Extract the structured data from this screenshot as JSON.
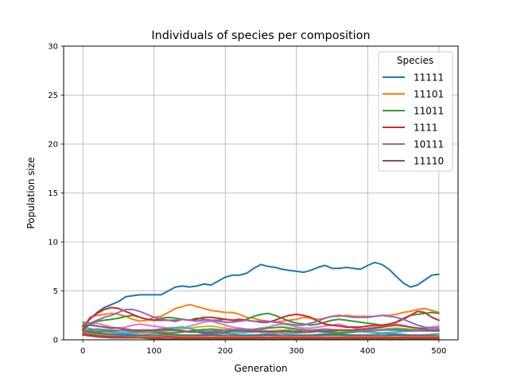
{
  "chart_data": {
    "type": "line",
    "title": "Individuals of species per composition",
    "xlabel": "Generation",
    "ylabel": "Population size",
    "xlim": [
      -27,
      527
    ],
    "ylim": [
      0,
      30
    ],
    "xticks": [
      0,
      100,
      200,
      300,
      400,
      500
    ],
    "yticks": [
      0,
      5,
      10,
      15,
      20,
      25,
      30
    ],
    "grid": true,
    "legend": {
      "title": "Species",
      "placement": "top-right"
    },
    "series": [
      {
        "name": "11111",
        "color": "#1f77b4",
        "x": [
          0,
          10,
          20,
          30,
          40,
          50,
          60,
          70,
          80,
          90,
          100,
          110,
          120,
          130,
          140,
          150,
          160,
          170,
          180,
          190,
          200,
          210,
          220,
          230,
          240,
          250,
          260,
          270,
          280,
          290,
          300,
          310,
          320,
          330,
          340,
          350,
          360,
          370,
          380,
          390,
          400,
          410,
          420,
          430,
          440,
          450,
          460,
          470,
          480,
          490,
          500
        ],
        "values": [
          1.5,
          2.1,
          2.8,
          3.3,
          3.6,
          3.9,
          4.4,
          4.5,
          4.6,
          4.6,
          4.6,
          4.6,
          5.0,
          5.4,
          5.5,
          5.4,
          5.5,
          5.7,
          5.6,
          6.0,
          6.4,
          6.6,
          6.6,
          6.8,
          7.3,
          7.7,
          7.5,
          7.4,
          7.2,
          7.1,
          7.0,
          6.9,
          7.1,
          7.4,
          7.6,
          7.3,
          7.3,
          7.4,
          7.3,
          7.2,
          7.6,
          7.9,
          7.7,
          7.2,
          6.5,
          5.8,
          5.4,
          5.6,
          6.1,
          6.6,
          6.7
        ]
      },
      {
        "name": "11101",
        "color": "#ff7f0e",
        "x": [
          0,
          10,
          20,
          30,
          40,
          50,
          60,
          70,
          80,
          90,
          100,
          110,
          120,
          130,
          140,
          150,
          160,
          170,
          180,
          190,
          200,
          210,
          220,
          230,
          240,
          250,
          260,
          270,
          280,
          290,
          300,
          310,
          320,
          330,
          340,
          350,
          360,
          370,
          380,
          390,
          400,
          410,
          420,
          430,
          440,
          450,
          460,
          470,
          480,
          490,
          500
        ],
        "values": [
          1.2,
          2.3,
          2.5,
          2.6,
          2.7,
          2.6,
          2.4,
          2.1,
          1.9,
          2.0,
          2.3,
          2.4,
          2.8,
          3.2,
          3.4,
          3.6,
          3.4,
          3.2,
          3.0,
          2.9,
          2.8,
          2.8,
          2.6,
          2.3,
          2.2,
          2.0,
          1.9,
          1.8,
          1.9,
          2.0,
          2.1,
          2.3,
          2.2,
          2.1,
          2.2,
          2.4,
          2.4,
          2.5,
          2.4,
          2.4,
          2.4,
          2.4,
          2.5,
          2.5,
          2.6,
          2.8,
          2.9,
          3.1,
          3.2,
          3.0,
          2.8
        ]
      },
      {
        "name": "11011",
        "color": "#2ca02c",
        "x": [
          0,
          10,
          20,
          30,
          40,
          50,
          60,
          70,
          80,
          90,
          100,
          110,
          120,
          130,
          140,
          150,
          160,
          170,
          180,
          190,
          200,
          210,
          220,
          230,
          240,
          250,
          260,
          270,
          280,
          290,
          300,
          310,
          320,
          330,
          340,
          350,
          360,
          370,
          380,
          390,
          400,
          410,
          420,
          430,
          440,
          450,
          460,
          470,
          480,
          490,
          500
        ],
        "values": [
          1.0,
          1.6,
          1.9,
          2.0,
          2.1,
          2.2,
          2.4,
          2.5,
          2.3,
          2.1,
          2.0,
          2.2,
          2.3,
          2.2,
          2.1,
          2.0,
          2.2,
          2.1,
          2.0,
          2.0,
          2.1,
          2.0,
          1.9,
          2.1,
          2.4,
          2.6,
          2.7,
          2.5,
          2.2,
          1.9,
          1.7,
          1.6,
          1.5,
          1.6,
          1.8,
          2.0,
          2.1,
          2.0,
          1.9,
          1.8,
          1.7,
          1.6,
          1.5,
          1.6,
          1.8,
          2.2,
          2.5,
          2.6,
          2.7,
          2.8,
          2.7
        ]
      },
      {
        "name": "1111",
        "color": "#d62728",
        "x": [
          0,
          10,
          20,
          30,
          40,
          50,
          60,
          70,
          80,
          90,
          100,
          110,
          120,
          130,
          140,
          150,
          160,
          170,
          180,
          190,
          200,
          210,
          220,
          230,
          240,
          250,
          260,
          270,
          280,
          290,
          300,
          310,
          320,
          330,
          340,
          350,
          360,
          370,
          380,
          390,
          400,
          410,
          420,
          430,
          440,
          450,
          460,
          470,
          480,
          490,
          500
        ],
        "values": [
          1.0,
          2.2,
          2.7,
          3.1,
          3.3,
          3.2,
          2.9,
          2.6,
          2.3,
          2.1,
          2.0,
          2.0,
          2.0,
          1.9,
          2.1,
          2.0,
          2.1,
          2.3,
          2.3,
          2.2,
          2.1,
          2.0,
          2.1,
          2.0,
          1.9,
          1.8,
          1.8,
          2.0,
          2.3,
          2.5,
          2.6,
          2.5,
          2.3,
          1.9,
          1.6,
          1.5,
          1.4,
          1.3,
          1.3,
          1.3,
          1.4,
          1.5,
          1.5,
          1.6,
          1.8,
          2.1,
          2.5,
          2.9,
          2.8,
          2.3,
          2.0
        ]
      },
      {
        "name": "10111",
        "color": "#9467bd",
        "x": [
          0,
          10,
          20,
          30,
          40,
          50,
          60,
          70,
          80,
          90,
          100,
          110,
          120,
          130,
          140,
          150,
          160,
          170,
          180,
          190,
          200,
          210,
          220,
          230,
          240,
          250,
          260,
          270,
          280,
          290,
          300,
          310,
          320,
          330,
          340,
          350,
          360,
          370,
          380,
          390,
          400,
          410,
          420,
          430,
          440,
          450,
          460,
          470,
          480,
          490,
          500
        ],
        "values": [
          1.8,
          1.7,
          2.0,
          2.3,
          2.5,
          2.8,
          3.1,
          3.1,
          2.9,
          2.6,
          2.3,
          2.1,
          2.0,
          2.0,
          2.1,
          2.0,
          1.9,
          2.0,
          2.0,
          1.9,
          1.8,
          1.8,
          1.9,
          2.0,
          1.9,
          1.9,
          1.9,
          1.8,
          1.7,
          1.6,
          1.5,
          1.5,
          1.7,
          1.9,
          2.2,
          2.4,
          2.5,
          2.4,
          2.3,
          2.3,
          2.3,
          2.4,
          2.5,
          2.4,
          2.3,
          2.1,
          1.8,
          1.5,
          1.3,
          1.2,
          1.2
        ]
      },
      {
        "name": "11110",
        "color": "#8c564b",
        "x": [
          0,
          10,
          20,
          30,
          40,
          50,
          60,
          70,
          80,
          90,
          100,
          110,
          120,
          130,
          140,
          150,
          160,
          170,
          180,
          190,
          200,
          210,
          220,
          230,
          240,
          250,
          260,
          270,
          280,
          290,
          300,
          310,
          320,
          330,
          340,
          350,
          360,
          370,
          380,
          390,
          400,
          410,
          420,
          430,
          440,
          450,
          460,
          470,
          480,
          490,
          500
        ],
        "values": [
          1.4,
          1.5,
          1.4,
          1.3,
          1.2,
          1.2,
          1.1,
          1.0,
          1.0,
          1.0,
          1.0,
          1.1,
          1.1,
          1.0,
          0.9,
          0.8,
          0.8,
          0.7,
          0.7,
          0.8,
          0.8,
          0.9,
          0.9,
          0.9,
          0.9,
          0.8,
          0.8,
          0.8,
          0.9,
          0.9,
          0.8,
          0.8,
          0.8,
          0.9,
          0.9,
          0.9,
          1.0,
          1.0,
          1.0,
          1.1,
          1.1,
          1.2,
          1.3,
          1.4,
          1.5,
          1.4,
          1.3,
          1.2,
          1.1,
          1.0,
          1.0
        ]
      },
      {
        "color": "#e377c2",
        "x": [
          0,
          10,
          20,
          30,
          40,
          50,
          60,
          70,
          80,
          90,
          100,
          110,
          120,
          130,
          140,
          150,
          160,
          170,
          180,
          190,
          200,
          210,
          220,
          230,
          240,
          250,
          260,
          270,
          280,
          290,
          300,
          310,
          320,
          330,
          340,
          350,
          360,
          370,
          380,
          390,
          400,
          410,
          420,
          430,
          440,
          450,
          460,
          470,
          480,
          490,
          500
        ],
        "values": [
          1.2,
          1.6,
          1.7,
          1.5,
          1.3,
          1.2,
          1.3,
          1.5,
          1.6,
          1.5,
          1.4,
          1.3,
          1.2,
          1.1,
          1.2,
          1.4,
          1.6,
          1.8,
          1.9,
          1.7,
          1.5,
          1.3,
          1.2,
          1.1,
          1.1,
          1.2,
          1.3,
          1.5,
          1.6,
          1.5,
          1.3,
          1.2,
          1.2,
          1.3,
          1.4,
          1.5,
          1.6,
          1.4,
          1.2,
          1.1,
          1.2,
          1.3,
          1.4,
          1.5,
          1.6,
          1.5,
          1.3,
          1.2,
          1.2,
          1.3,
          1.4
        ]
      },
      {
        "color": "#7f7f7f",
        "x": [
          0,
          20,
          40,
          60,
          80,
          100,
          120,
          140,
          160,
          180,
          200,
          220,
          240,
          260,
          280,
          300,
          320,
          340,
          360,
          380,
          400,
          420,
          440,
          460,
          480,
          500
        ],
        "values": [
          0.9,
          0.7,
          0.6,
          0.6,
          0.5,
          0.6,
          0.6,
          0.5,
          0.5,
          0.6,
          0.6,
          0.5,
          0.5,
          0.6,
          0.6,
          0.5,
          0.5,
          0.6,
          0.6,
          0.5,
          0.5,
          0.6,
          0.6,
          0.5,
          0.5,
          0.6
        ]
      },
      {
        "color": "#bcbd22",
        "x": [
          0,
          20,
          40,
          60,
          80,
          100,
          120,
          140,
          160,
          180,
          200,
          220,
          240,
          260,
          280,
          300,
          320,
          340,
          360,
          380,
          400,
          420,
          440,
          460,
          480,
          500
        ],
        "values": [
          1.1,
          0.9,
          0.8,
          0.7,
          0.7,
          0.8,
          0.9,
          1.1,
          1.3,
          1.4,
          1.2,
          1.0,
          0.9,
          0.9,
          1.0,
          1.1,
          1.0,
          0.9,
          0.8,
          0.9,
          1.0,
          1.1,
          1.2,
          1.1,
          1.0,
          0.9
        ]
      },
      {
        "color": "#17becf",
        "x": [
          0,
          20,
          40,
          60,
          80,
          100,
          120,
          140,
          160,
          180,
          200,
          220,
          240,
          260,
          280,
          300,
          320,
          340,
          360,
          380,
          400,
          420,
          440,
          460,
          480,
          500
        ],
        "values": [
          1.3,
          1.0,
          0.8,
          0.7,
          0.8,
          0.9,
          1.2,
          1.3,
          1.0,
          0.8,
          0.7,
          0.7,
          0.8,
          0.9,
          0.8,
          0.7,
          0.8,
          0.9,
          1.0,
          0.9,
          0.8,
          0.7,
          0.8,
          0.9,
          1.0,
          1.0
        ]
      },
      {
        "color": "#1f77b4",
        "x": [
          0,
          20,
          40,
          60,
          80,
          100,
          120,
          140,
          160,
          180,
          200,
          220,
          240,
          260,
          280,
          300,
          320,
          340,
          360,
          380,
          400,
          420,
          440,
          460,
          480,
          500
        ],
        "values": [
          0.8,
          0.6,
          0.5,
          0.5,
          0.4,
          0.4,
          0.5,
          0.4,
          0.4,
          0.5,
          0.4,
          0.4,
          0.4,
          0.5,
          0.4,
          0.4,
          0.4,
          0.5,
          0.5,
          0.4,
          0.4,
          0.4,
          0.5,
          0.4,
          0.4,
          0.4
        ]
      },
      {
        "color": "#ff7f0e",
        "x": [
          0,
          20,
          40,
          60,
          80,
          100,
          120,
          140,
          160,
          180,
          200,
          220,
          240,
          260,
          280,
          300,
          320,
          340,
          360,
          380,
          400,
          420,
          440,
          460,
          480,
          500
        ],
        "values": [
          0.7,
          0.5,
          0.4,
          0.3,
          0.3,
          0.3,
          0.4,
          0.3,
          0.3,
          0.3,
          0.3,
          0.3,
          0.3,
          0.3,
          0.3,
          0.3,
          0.3,
          0.3,
          0.3,
          0.3,
          0.3,
          0.3,
          0.3,
          0.3,
          0.3,
          0.3
        ]
      },
      {
        "color": "#2ca02c",
        "x": [
          0,
          20,
          40,
          60,
          80,
          100,
          120,
          140,
          160,
          180,
          200,
          220,
          240,
          260,
          280,
          300,
          320,
          340,
          360,
          380,
          400,
          420,
          440,
          460,
          480,
          500
        ],
        "values": [
          1.0,
          0.8,
          0.9,
          1.0,
          0.9,
          0.8,
          0.7,
          0.8,
          1.0,
          1.1,
          1.0,
          0.9,
          1.0,
          1.2,
          1.3,
          1.1,
          0.9,
          0.8,
          0.7,
          0.8,
          0.9,
          1.0,
          1.1,
          1.0,
          0.9,
          0.9
        ]
      },
      {
        "color": "#d62728",
        "x": [
          0,
          20,
          40,
          60,
          80,
          100,
          120,
          140,
          160,
          180,
          200,
          220,
          240,
          260,
          280,
          300,
          320,
          340,
          360,
          380,
          400,
          420,
          440,
          460,
          480,
          500
        ],
        "values": [
          0.6,
          0.4,
          0.3,
          0.3,
          0.2,
          0.2,
          0.3,
          0.2,
          0.2,
          0.2,
          0.2,
          0.2,
          0.2,
          0.2,
          0.2,
          0.2,
          0.2,
          0.2,
          0.2,
          0.2,
          0.2,
          0.2,
          0.2,
          0.2,
          0.2,
          0.2
        ]
      },
      {
        "color": "#9467bd",
        "x": [
          0,
          20,
          40,
          60,
          80,
          100,
          120,
          140,
          160,
          180,
          200,
          220,
          240,
          260,
          280,
          300,
          320,
          340,
          360,
          380,
          400,
          420,
          440,
          460,
          480,
          500
        ],
        "values": [
          0.9,
          1.1,
          1.0,
          0.9,
          0.8,
          0.9,
          1.0,
          0.9,
          0.8,
          0.9,
          1.0,
          1.1,
          1.0,
          0.9,
          0.8,
          0.9,
          1.0,
          1.1,
          1.0,
          0.9,
          0.9,
          1.0,
          1.0,
          0.9,
          0.9,
          1.0
        ]
      },
      {
        "color": "#8c564b",
        "x": [
          0,
          20,
          40,
          60,
          80,
          100,
          120,
          140,
          160,
          180,
          200,
          220,
          240,
          260,
          280,
          300,
          320,
          340,
          360,
          380,
          400,
          420,
          440,
          460,
          480,
          500
        ],
        "values": [
          0.5,
          0.3,
          0.2,
          0.2,
          0.2,
          0.1,
          0.1,
          0.1,
          0.1,
          0.1,
          0.1,
          0.1,
          0.1,
          0.1,
          0.1,
          0.1,
          0.1,
          0.1,
          0.1,
          0.1,
          0.1,
          0.1,
          0.1,
          0.1,
          0.1,
          0.1
        ]
      }
    ]
  }
}
